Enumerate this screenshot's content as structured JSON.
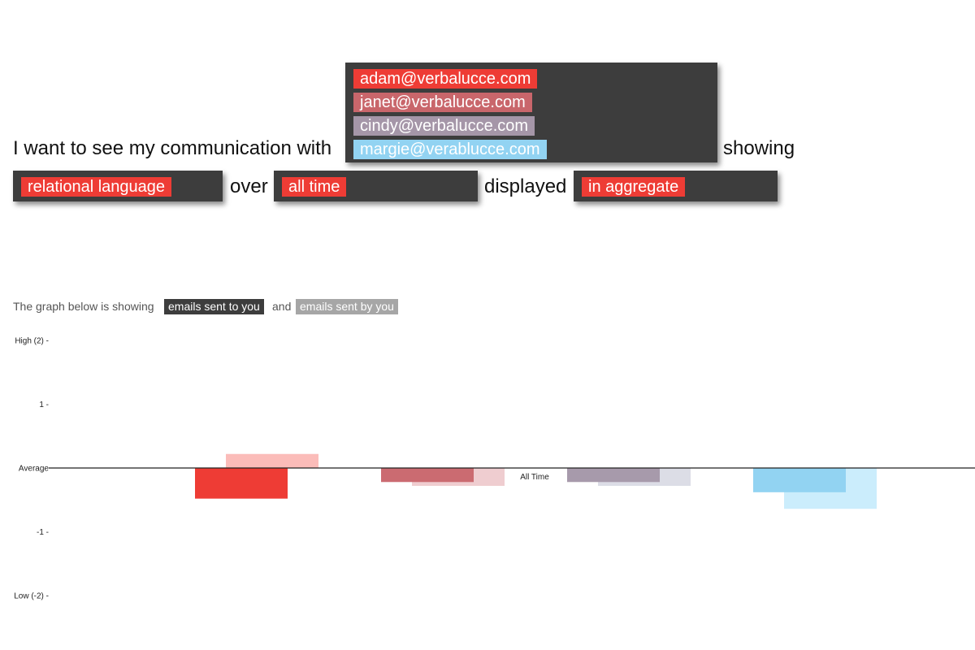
{
  "query": {
    "intro": "I want to see my communication with",
    "showing": "showing",
    "over": "over",
    "displayed": "displayed",
    "contacts": [
      {
        "email": "adam@verbalucce.com",
        "color": "#ee3c35"
      },
      {
        "email": "janet@verbalucce.com",
        "color": "#c9666b"
      },
      {
        "email": "cindy@verbalucce.com",
        "color": "#a596a8"
      },
      {
        "email": "margie@verablucce.com",
        "color": "#92d3f2"
      }
    ],
    "metric": "relational language",
    "timeframe": "all time",
    "display_mode": "in aggregate",
    "accent_color": "#ee3c35",
    "selector_color": "#3d3d3d"
  },
  "caption": {
    "prefix": "The graph below is showing",
    "received_label": "emails sent to you",
    "conjunction": "and",
    "sent_label": "emails sent by you",
    "received_color": "#3d3d3d",
    "sent_color": "#a6a6a6"
  },
  "chart_data": {
    "type": "bar",
    "categories": [
      "All Time"
    ],
    "ylim": [
      -2,
      2
    ],
    "yticks": [
      {
        "value": 2,
        "label": "High (2) -"
      },
      {
        "value": 1,
        "label": "1 -"
      },
      {
        "value": 0,
        "label": "Average"
      },
      {
        "value": -1,
        "label": "-1 -"
      },
      {
        "value": -2,
        "label": "Low (-2) -"
      }
    ],
    "series": [
      {
        "name": "adam@verbalucce.com",
        "received": -0.48,
        "sent": 0.22,
        "color_received": "#ee3c35",
        "color_sent": "#fbbcb9"
      },
      {
        "name": "janet@verbalucce.com",
        "received": -0.22,
        "sent": -0.28,
        "color_received": "#cb6b71",
        "color_sent": "#efcdd0"
      },
      {
        "name": "cindy@verbalucce.com",
        "received": -0.22,
        "sent": -0.28,
        "color_received": "#a79aab",
        "color_sent": "#dcdde6"
      },
      {
        "name": "margie@verablucce.com",
        "received": -0.38,
        "sent": -0.64,
        "color_received": "#92d3f2",
        "color_sent": "#cbedfc"
      }
    ]
  }
}
